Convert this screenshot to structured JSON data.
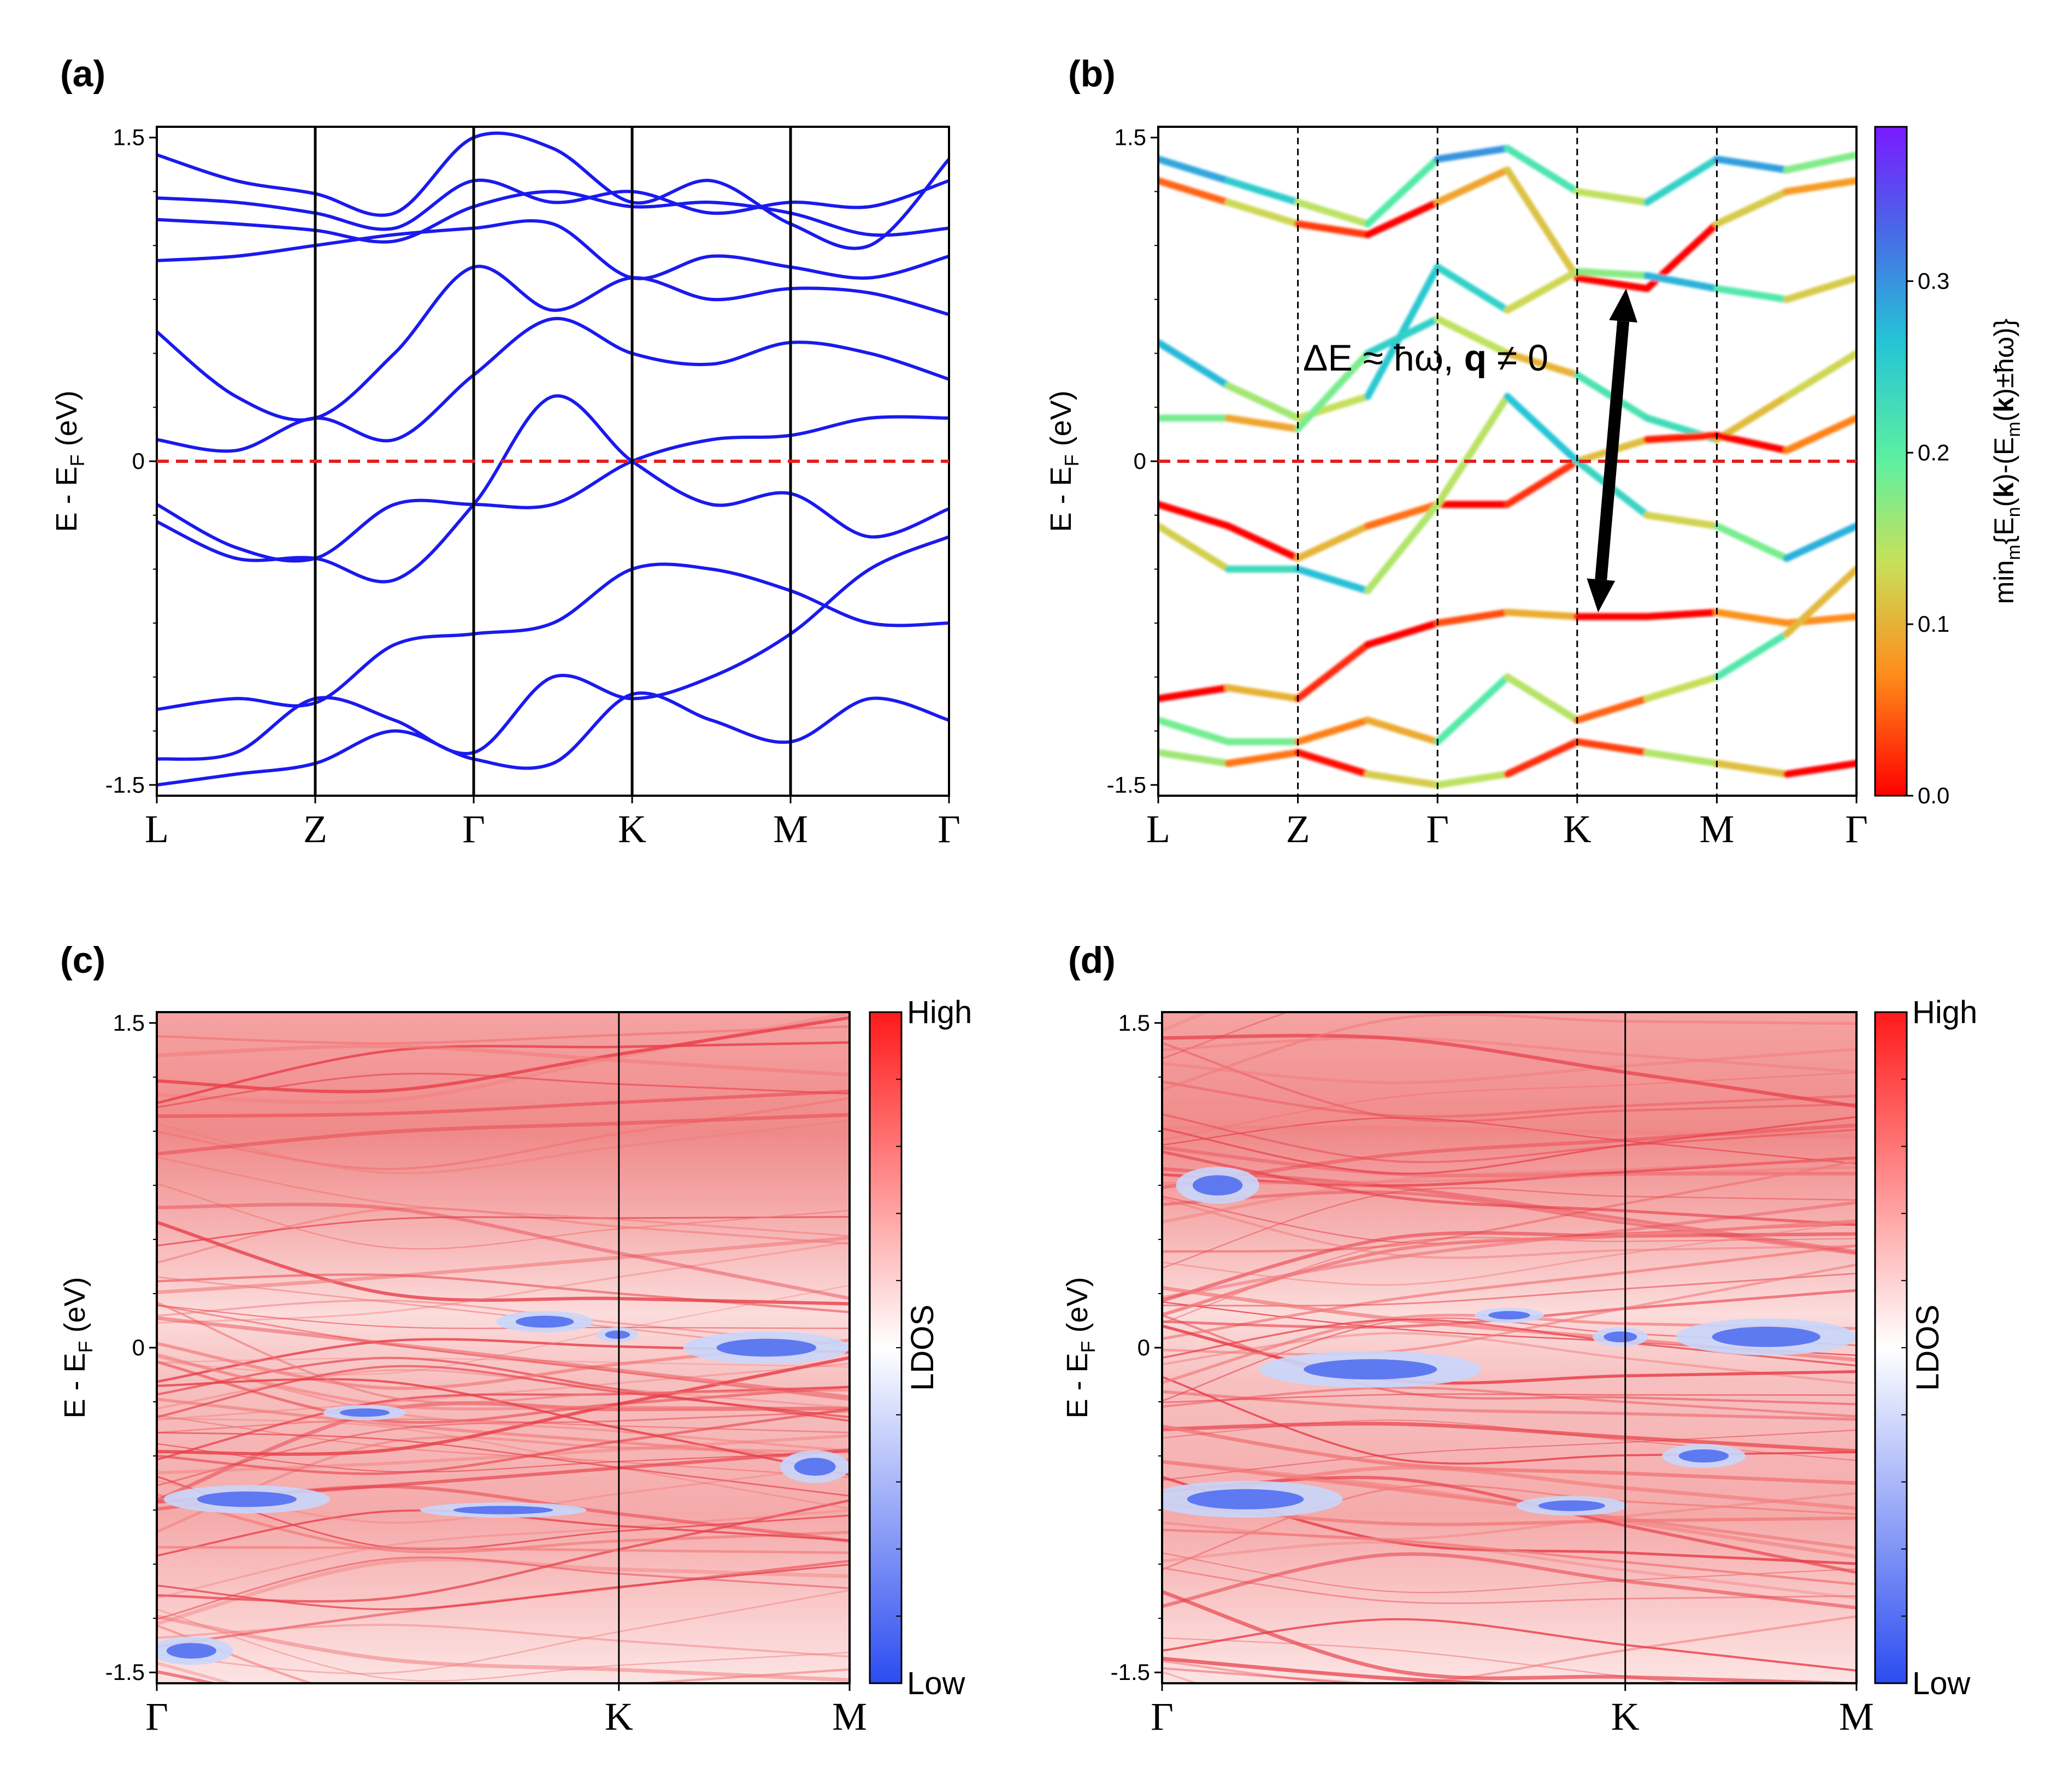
{
  "chart_data": [
    {
      "panel": "(a)",
      "type": "line",
      "ylabel": "E - E",
      "ylabel_sub": "F",
      "ylabel_unit": " (eV)",
      "ylim": [
        -1.55,
        1.55
      ],
      "yticks": [
        "1.5",
        "0",
        "-1.5"
      ],
      "ytick_values": [
        1.5,
        0,
        -1.5
      ],
      "xticks": [
        "L",
        "Z",
        "Γ",
        "K",
        "M",
        "Γ"
      ],
      "fermi_level": 0,
      "line_color": "#1a1aee",
      "fermi_color": "#e02020",
      "series": [
        {
          "values": [
            1.42,
            1.3,
            1.24,
            1.15,
            1.5,
            1.45,
            1.2,
            1.3,
            1.1,
            1.0,
            1.4
          ]
        },
        {
          "values": [
            1.22,
            1.2,
            1.15,
            1.08,
            1.3,
            1.2,
            1.25,
            1.15,
            1.2,
            1.18,
            1.3
          ]
        },
        {
          "values": [
            1.12,
            1.1,
            1.07,
            1.02,
            1.18,
            1.25,
            1.18,
            1.2,
            1.15,
            1.05,
            1.08
          ]
        },
        {
          "values": [
            0.93,
            0.95,
            1.0,
            1.05,
            1.08,
            1.1,
            0.85,
            0.95,
            0.9,
            0.85,
            0.95
          ]
        },
        {
          "values": [
            0.6,
            0.3,
            0.2,
            0.5,
            0.9,
            0.7,
            0.85,
            0.75,
            0.8,
            0.78,
            0.68
          ]
        },
        {
          "values": [
            0.1,
            0.05,
            0.2,
            0.1,
            0.4,
            0.66,
            0.5,
            0.45,
            0.55,
            0.5,
            0.38
          ]
        },
        {
          "values": [
            -0.2,
            -0.4,
            -0.45,
            -0.2,
            -0.2,
            -0.2,
            0.0,
            0.1,
            0.12,
            0.2,
            0.2
          ]
        },
        {
          "values": [
            -0.28,
            -0.45,
            -0.45,
            -0.55,
            -0.2,
            0.3,
            0.0,
            -0.2,
            -0.15,
            -0.35,
            -0.22
          ]
        },
        {
          "values": [
            -1.15,
            -1.1,
            -1.12,
            -0.85,
            -0.8,
            -0.75,
            -0.5,
            -0.5,
            -0.6,
            -0.75,
            -0.75
          ]
        },
        {
          "values": [
            -1.38,
            -1.35,
            -1.1,
            -1.2,
            -1.35,
            -1.0,
            -1.1,
            -1.0,
            -0.8,
            -0.5,
            -0.35
          ]
        },
        {
          "values": [
            -1.5,
            -1.45,
            -1.4,
            -1.25,
            -1.38,
            -1.4,
            -1.08,
            -1.2,
            -1.3,
            -1.1,
            -1.2
          ]
        }
      ]
    },
    {
      "panel": "(b)",
      "type": "line",
      "ylabel": "E - E",
      "ylabel_sub": "F",
      "ylabel_unit": " (eV)",
      "ylim": [
        -1.55,
        1.55
      ],
      "yticks": [
        "1.5",
        "0",
        "-1.5"
      ],
      "ytick_values": [
        1.5,
        0,
        -1.5
      ],
      "xticks": [
        "L",
        "Z",
        "Γ",
        "K",
        "M",
        "Γ"
      ],
      "fermi_level": 0,
      "annotation": "ΔE ≈ ħω, ",
      "annotation_bold": "q",
      "annotation_tail": " ≠ 0",
      "arrow_from": {
        "x": 3.15,
        "y": -0.7
      },
      "arrow_to": {
        "x": 3.35,
        "y": 0.8
      },
      "colorbar": {
        "label_prefix": "min",
        "label_full": "min_m{E_n(k)-(E_m(k)±ħω)}",
        "ticks": [
          "0.0",
          "0.1",
          "0.2",
          "0.3"
        ],
        "tick_values": [
          0.0,
          0.1,
          0.2,
          0.3
        ],
        "range": [
          0.0,
          0.39
        ],
        "colormap": "rainbow"
      },
      "series": [
        {
          "values": [
            1.3,
            1.2,
            1.1,
            1.05,
            1.2,
            1.35,
            0.85,
            0.8,
            1.1,
            1.25,
            1.3
          ],
          "level": 0.05
        },
        {
          "values": [
            1.4,
            1.3,
            1.2,
            1.1,
            1.4,
            1.45,
            1.25,
            1.2,
            1.4,
            1.35,
            1.42
          ],
          "level": 0.22
        },
        {
          "values": [
            0.55,
            0.35,
            0.2,
            0.3,
            0.9,
            0.7,
            0.88,
            0.86,
            0.8,
            0.75,
            0.85
          ],
          "level": 0.2
        },
        {
          "values": [
            0.2,
            0.2,
            0.15,
            0.5,
            0.66,
            0.5,
            0.4,
            0.2,
            0.1,
            0.3,
            0.5
          ],
          "level": 0.17
        },
        {
          "values": [
            -0.2,
            -0.3,
            -0.45,
            -0.3,
            -0.2,
            -0.2,
            0.0,
            0.1,
            0.12,
            0.05,
            0.2
          ],
          "level": 0.03
        },
        {
          "values": [
            -0.3,
            -0.5,
            -0.5,
            -0.6,
            -0.2,
            0.3,
            0.0,
            -0.25,
            -0.3,
            -0.45,
            -0.3
          ],
          "level": 0.2
        },
        {
          "values": [
            -1.1,
            -1.05,
            -1.1,
            -0.85,
            -0.75,
            -0.7,
            -0.72,
            -0.72,
            -0.7,
            -0.75,
            -0.72
          ],
          "level": 0.02
        },
        {
          "values": [
            -1.2,
            -1.3,
            -1.3,
            -1.2,
            -1.3,
            -1.0,
            -1.2,
            -1.1,
            -1.0,
            -0.8,
            -0.5
          ],
          "level": 0.13
        },
        {
          "values": [
            -1.35,
            -1.4,
            -1.35,
            -1.45,
            -1.5,
            -1.45,
            -1.3,
            -1.35,
            -1.4,
            -1.45,
            -1.4
          ],
          "level": 0.08
        }
      ]
    },
    {
      "panel": "(c)",
      "type": "heatmap",
      "ylabel": "E - E",
      "ylabel_sub": "F",
      "ylabel_unit": " (eV)",
      "ylim": [
        -1.55,
        1.55
      ],
      "yticks": [
        "1.5",
        "0",
        "-1.5"
      ],
      "ytick_values": [
        1.5,
        0,
        -1.5
      ],
      "xticks": [
        "Γ",
        "K",
        "M"
      ],
      "xtick_pos": [
        0,
        0.667,
        1.0
      ],
      "colorbar": {
        "label": "LDOS",
        "high": "High",
        "low": "Low",
        "high_color": "#ff2020",
        "low_color": "#2b4cf0"
      },
      "low_regions": [
        {
          "cx": 0.56,
          "cy": 0.12,
          "rx": 0.07,
          "ry": 0.035
        },
        {
          "cx": 0.88,
          "cy": 0.0,
          "rx": 0.12,
          "ry": 0.06
        },
        {
          "cx": 0.665,
          "cy": 0.06,
          "rx": 0.03,
          "ry": 0.02
        },
        {
          "cx": 0.13,
          "cy": -0.7,
          "rx": 0.12,
          "ry": 0.05
        },
        {
          "cx": 0.5,
          "cy": -0.75,
          "rx": 0.12,
          "ry": 0.02
        },
        {
          "cx": 0.95,
          "cy": -0.55,
          "rx": 0.05,
          "ry": 0.06
        },
        {
          "cx": 0.05,
          "cy": -1.4,
          "rx": 0.06,
          "ry": 0.05
        },
        {
          "cx": 0.3,
          "cy": -0.3,
          "rx": 0.06,
          "ry": 0.02
        }
      ]
    },
    {
      "panel": "(d)",
      "type": "heatmap",
      "ylabel": "E - E",
      "ylabel_sub": "F",
      "ylabel_unit": " (eV)",
      "ylim": [
        -1.55,
        1.55
      ],
      "yticks": [
        "1.5",
        "0",
        "-1.5"
      ],
      "ytick_values": [
        1.5,
        0,
        -1.5
      ],
      "xticks": [
        "Γ",
        "K",
        "M"
      ],
      "xtick_pos": [
        0,
        0.667,
        1.0
      ],
      "colorbar": {
        "label": "LDOS",
        "high": "High",
        "low": "Low",
        "high_color": "#ff2020",
        "low_color": "#2b4cf0"
      },
      "low_regions": [
        {
          "cx": 0.87,
          "cy": 0.05,
          "rx": 0.13,
          "ry": 0.07
        },
        {
          "cx": 0.66,
          "cy": 0.05,
          "rx": 0.04,
          "ry": 0.03
        },
        {
          "cx": 0.3,
          "cy": -0.1,
          "rx": 0.16,
          "ry": 0.07
        },
        {
          "cx": 0.12,
          "cy": -0.7,
          "rx": 0.14,
          "ry": 0.07
        },
        {
          "cx": 0.59,
          "cy": -0.73,
          "rx": 0.08,
          "ry": 0.03
        },
        {
          "cx": 0.08,
          "cy": 0.75,
          "rx": 0.06,
          "ry": 0.07
        },
        {
          "cx": 0.78,
          "cy": -0.5,
          "rx": 0.06,
          "ry": 0.04
        },
        {
          "cx": 0.5,
          "cy": 0.15,
          "rx": 0.05,
          "ry": 0.02
        }
      ]
    }
  ]
}
